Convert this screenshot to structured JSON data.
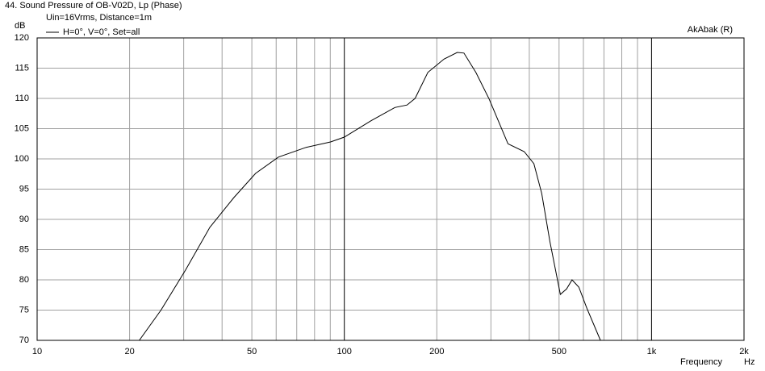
{
  "chart_data": {
    "type": "line",
    "title": "44. Sound Pressure of OB-V02D, Lp (Phase)",
    "subtitle": "Uin=16Vrms, Distance=1m",
    "watermark": "AkAbak (R)",
    "y_label": "dB",
    "x_label": "Frequency",
    "x_unit": "Hz",
    "xscale": "log",
    "xlim": [
      10,
      2000
    ],
    "ylim": [
      70,
      120
    ],
    "xticks": [
      10,
      20,
      50,
      100,
      200,
      500,
      {
        "value": 1000,
        "label": "1k"
      },
      {
        "value": 2000,
        "label": "2k"
      }
    ],
    "xminor": [
      30,
      40,
      60,
      70,
      80,
      90,
      300,
      400,
      600,
      700,
      800,
      900
    ],
    "yticks": [
      70,
      75,
      80,
      85,
      90,
      95,
      100,
      105,
      110,
      115,
      120
    ],
    "grid": true,
    "legend": "top-left",
    "series": [
      {
        "name": "H=0°, V=0°, Set=all",
        "color": "#000000",
        "x": [
          10,
          21.5,
          25.3,
          30.4,
          36.5,
          43.7,
          51.4,
          61,
          75.1,
          90.2,
          100,
          122,
          146,
          160,
          170,
          187,
          211,
          233,
          245,
          268,
          296,
          341,
          385,
          414,
          439,
          467,
          505,
          529,
          551,
          580,
          616,
          682
        ],
        "values": [
          70,
          70,
          75,
          81.6,
          88.7,
          93.6,
          97.6,
          100.3,
          101.9,
          102.8,
          103.6,
          106.3,
          108.5,
          108.9,
          110,
          114.3,
          116.5,
          117.6,
          117.5,
          114.3,
          109.9,
          102.5,
          101.2,
          99.2,
          94.3,
          86.3,
          77.6,
          78.5,
          80,
          78.8,
          75.3,
          70
        ]
      }
    ]
  }
}
